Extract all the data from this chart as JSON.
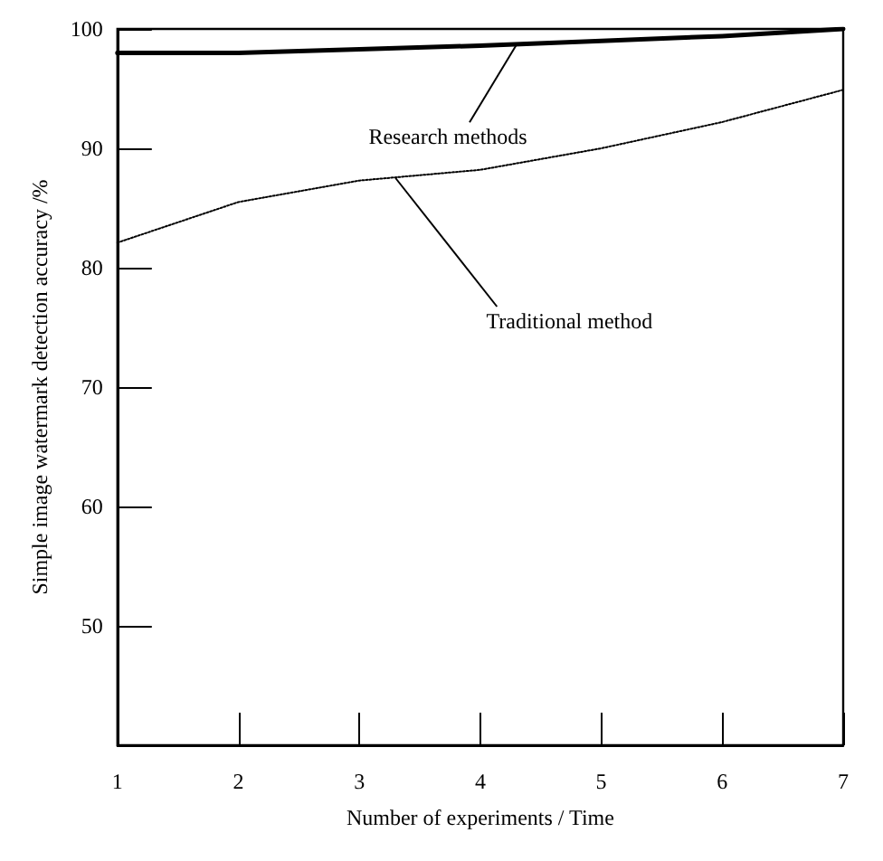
{
  "chart_data": {
    "type": "line",
    "xlabel": "Number of experiments / Time",
    "ylabel": "Simple image watermark detection accuracy /%",
    "x": [
      1,
      2,
      3,
      4,
      5,
      6,
      7
    ],
    "series": [
      {
        "color": "#000000",
        "line_style": "solid",
        "values": [
          98.0,
          98.0,
          98.3,
          98.6,
          99.0,
          99.4,
          100
        ]
      },
      {
        "color": "#000000",
        "line_style": "dotted",
        "values": [
          82.1,
          85.5,
          87.3,
          88.2,
          90.0,
          92.2,
          94.9
        ]
      }
    ],
    "annotations": [
      {
        "text": "Research methods",
        "x": 4.3,
        "y": 98.7
      },
      {
        "text": "Traditional method",
        "x": 3.3,
        "y": 87.5
      }
    ],
    "xlim": [
      1,
      7
    ],
    "xticks": [
      1,
      2,
      3,
      4,
      5,
      6,
      7
    ],
    "ylim": [
      40,
      100
    ],
    "yticks": [
      50,
      60,
      70,
      80,
      90,
      100
    ],
    "grid": false,
    "marker": "none"
  }
}
